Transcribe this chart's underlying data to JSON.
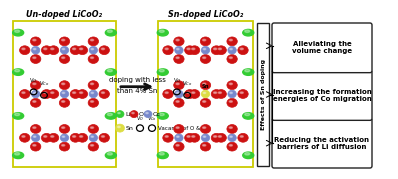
{
  "title_left": "Un-doped LiCoO₂",
  "title_right": "Sn-doped LiCoO₂",
  "arrow_text_line1": "doping with less",
  "arrow_text_line2": "than 4% Sn",
  "effects_label": "Effects of Sn doping",
  "effects_boxes": [
    "Alleviating the\nvolume change",
    "Increasing the formation\nenergies of Co migration",
    "Reducing the activation\nbarriers of Li diffusion"
  ],
  "li_color": "#33cc33",
  "o_color": "#cc1111",
  "co_color": "#7788cc",
  "sn_color": "#dddd44",
  "border_color": "#dddd00",
  "box_bg": "white",
  "box_border": "#222222",
  "fig_bg": "white",
  "arrow_color": "#111111"
}
